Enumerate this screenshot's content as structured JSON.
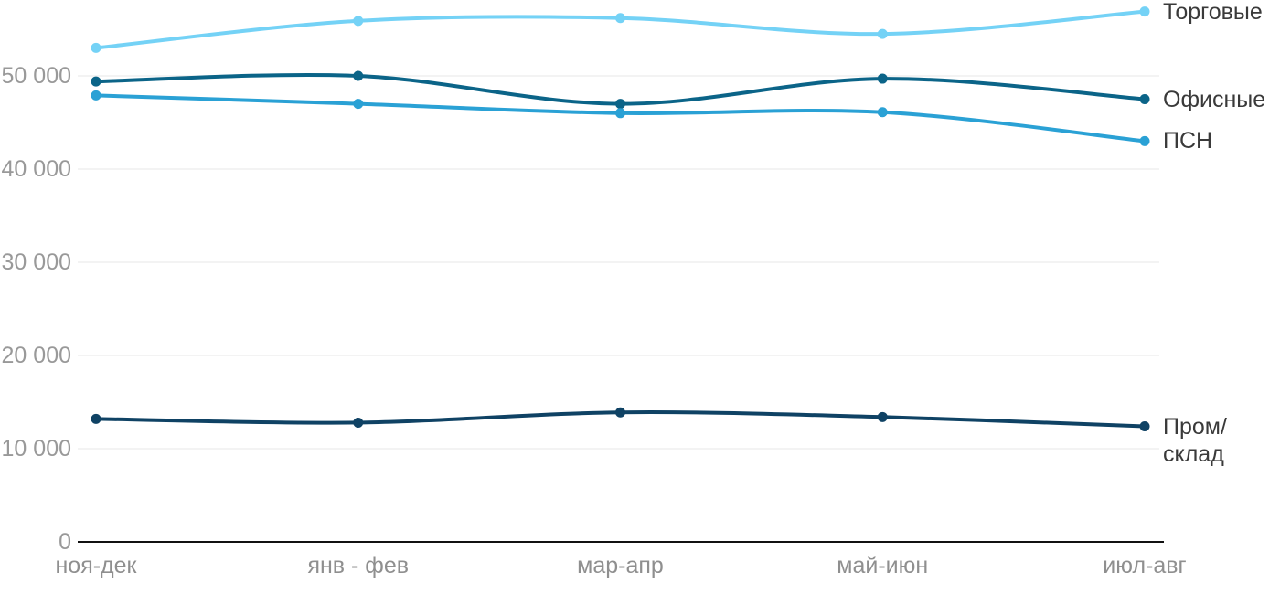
{
  "chart_data": {
    "type": "line",
    "title": "",
    "xlabel": "",
    "ylabel": "",
    "categories": [
      "ноя-дек",
      "янв - фев",
      "мар-апр",
      "май-июн",
      "июл-авг"
    ],
    "series": [
      {
        "name": "Торговые",
        "color": "#74D2F6",
        "values": [
          53000,
          55900,
          56200,
          54500,
          56900
        ],
        "label_lines": [
          "Торговые"
        ]
      },
      {
        "name": "Офисные",
        "color": "#0B6488",
        "values": [
          49400,
          50000,
          47000,
          49700,
          47500
        ],
        "label_lines": [
          "Офисные"
        ]
      },
      {
        "name": "ПСН",
        "color": "#2AA1D5",
        "values": [
          47900,
          47000,
          46000,
          46100,
          43000
        ],
        "label_lines": [
          "ПСН"
        ]
      },
      {
        "name": "Пром/склад",
        "color": "#0F4264",
        "values": [
          13200,
          12800,
          13900,
          13400,
          12400
        ],
        "label_lines": [
          "Пром/",
          "склад"
        ]
      }
    ],
    "yticks": [
      0,
      10000,
      20000,
      30000,
      40000,
      50000
    ],
    "ytick_labels": [
      "0",
      "10 000",
      "20 000",
      "30 000",
      "40 000",
      "50 000"
    ],
    "ylim": [
      0,
      58000
    ],
    "grid": true,
    "legend_position": "right-end-of-lines"
  },
  "colors": {
    "background": "#FFFFFF",
    "grid_line": "#E7E7E7",
    "axis_line": "#111111",
    "y_tick_label": "#999999",
    "x_tick_label": "#8F8F8F",
    "series_label": "#3A3A3A"
  }
}
